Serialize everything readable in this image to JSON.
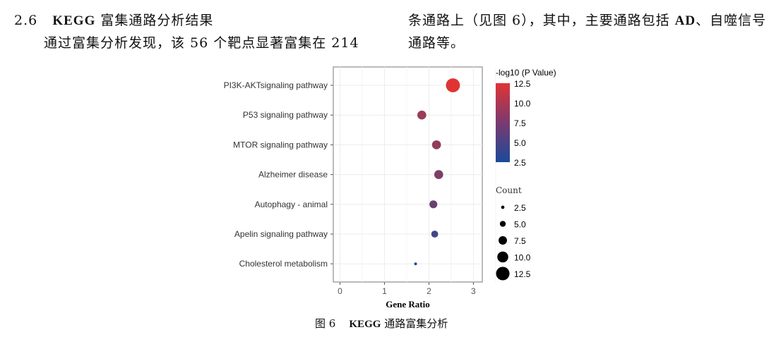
{
  "section": {
    "number": "2.6",
    "title_bold": "KEGG",
    "title_rest": "富集通路分析结果"
  },
  "left_text": "通过富集分析发现，该 56 个靶点显著富集在 214",
  "right_text": [
    "条通路上（见图 6），其中，主要通路包括 ",
    "AD",
    "、自噬信号",
    "通路等。"
  ],
  "caption": {
    "label": "图 6",
    "title_bold": "KEGG",
    "title_rest": "通路富集分析"
  },
  "chart_data": {
    "type": "scatter",
    "xlabel": "Gene Ratio",
    "ylabel": "",
    "xlim": [
      -0.15,
      3.2
    ],
    "xticks": [
      0,
      1,
      2,
      3
    ],
    "categories": [
      "PI3K-AKTsignaling pathway",
      "P53 signaling pathway",
      "MTOR signaling pathway",
      "Alzheimer disease",
      "Autophagy - animal",
      "Apelin signaling pathway",
      "Cholesterol metabolism"
    ],
    "gene_ratio": [
      2.54,
      1.84,
      2.17,
      2.22,
      2.1,
      2.13,
      1.7
    ],
    "neg_log10_p": [
      12.5,
      9.0,
      8.5,
      7.5,
      6.5,
      4.5,
      2.5
    ],
    "count": [
      13,
      8,
      8,
      8,
      7,
      6,
      2
    ],
    "grid": true,
    "color_legend": {
      "title": "-log10 (P Value)",
      "ticks": [
        12.5,
        10.0,
        7.5,
        5.0,
        2.5
      ],
      "low_color": "#1a4a9a",
      "high_color": "#e03434"
    },
    "size_legend": {
      "title": "Count",
      "ticks": [
        2.5,
        5.0,
        7.5,
        10.0,
        12.5
      ]
    },
    "legend_position": "right"
  }
}
